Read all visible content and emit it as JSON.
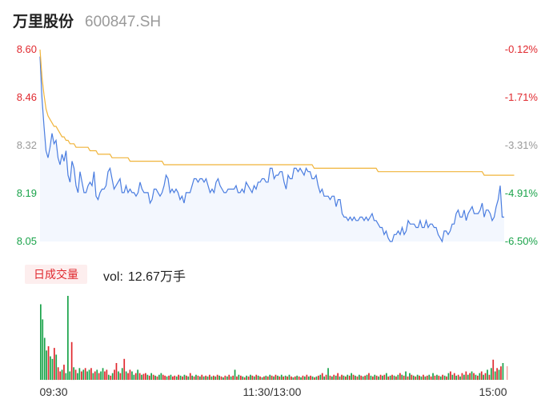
{
  "header": {
    "name": "万里股份",
    "code": "600847.SH"
  },
  "volume_legend": {
    "tab_label": "日成交量",
    "vol_label": "vol:",
    "vol_value": "12.67万手"
  },
  "chart_data": [
    {
      "type": "line",
      "title": "",
      "y_left_ticks": [
        "8.60",
        "8.46",
        "8.32",
        "8.19",
        "8.05"
      ],
      "y_right_ticks": [
        "-0.12%",
        "-1.71%",
        "-3.31%",
        "-4.91%",
        "-6.50%"
      ],
      "x_ticks": [
        "09:30",
        "11:30/13:00",
        "15:00"
      ],
      "ylim": [
        8.05,
        8.6
      ],
      "colors": {
        "price": "#4a7de0",
        "avg": "#f0b43a",
        "up": "#e0282e",
        "down": "#1aa34a",
        "neutral": "#999999"
      },
      "series": [
        {
          "role": "price",
          "values": [
            8.58,
            8.46,
            8.38,
            8.31,
            8.29,
            8.32,
            8.36,
            8.33,
            8.34,
            8.29,
            8.27,
            8.3,
            8.28,
            8.31,
            8.24,
            8.22,
            8.28,
            8.26,
            8.21,
            8.19,
            8.25,
            8.22,
            8.19,
            8.19,
            8.21,
            8.22,
            8.21,
            8.25,
            8.18,
            8.17,
            8.19,
            8.2,
            8.2,
            8.21,
            8.25,
            8.26,
            8.23,
            8.2,
            8.21,
            8.22,
            8.23,
            8.19,
            8.19,
            8.21,
            8.19,
            8.2,
            8.19,
            8.19,
            8.18,
            8.19,
            8.22,
            8.2,
            8.19,
            8.19,
            8.19,
            8.16,
            8.17,
            8.2,
            8.2,
            8.19,
            8.18,
            8.19,
            8.21,
            8.24,
            8.23,
            8.19,
            8.2,
            8.19,
            8.2,
            8.19,
            8.17,
            8.18,
            8.16,
            8.19,
            8.19,
            8.19,
            8.21,
            8.23,
            8.23,
            8.22,
            8.23,
            8.23,
            8.22,
            8.23,
            8.21,
            8.19,
            8.2,
            8.19,
            8.22,
            8.23,
            8.21,
            8.2,
            8.19,
            8.19,
            8.2,
            8.2,
            8.2,
            8.2,
            8.21,
            8.19,
            8.19,
            8.2,
            8.19,
            8.22,
            8.21,
            8.2,
            8.19,
            8.21,
            8.2,
            8.22,
            8.22,
            8.23,
            8.23,
            8.22,
            8.22,
            8.26,
            8.26,
            8.23,
            8.24,
            8.24,
            8.25,
            8.25,
            8.22,
            8.2,
            8.24,
            8.23,
            8.23,
            8.26,
            8.26,
            8.25,
            8.26,
            8.25,
            8.24,
            8.26,
            8.25,
            8.25,
            8.23,
            8.23,
            8.24,
            8.21,
            8.19,
            8.2,
            8.18,
            8.18,
            8.18,
            8.17,
            8.18,
            8.18,
            8.15,
            8.17,
            8.17,
            8.13,
            8.12,
            8.12,
            8.11,
            8.12,
            8.11,
            8.12,
            8.11,
            8.11,
            8.12,
            8.12,
            8.11,
            8.12,
            8.11,
            8.12,
            8.13,
            8.11,
            8.11,
            8.1,
            8.09,
            8.09,
            8.07,
            8.08,
            8.06,
            8.05,
            8.05,
            8.07,
            8.07,
            8.08,
            8.07,
            8.09,
            8.07,
            8.08,
            8.11,
            8.1,
            8.1,
            8.1,
            8.09,
            8.09,
            8.11,
            8.09,
            8.09,
            8.11,
            8.09,
            8.1,
            8.1,
            8.09,
            8.09,
            8.07,
            8.06,
            8.05,
            8.08,
            8.08,
            8.07,
            8.08,
            8.1,
            8.1,
            8.13,
            8.14,
            8.12,
            8.12,
            8.14,
            8.11,
            8.13,
            8.14,
            8.15,
            8.13,
            8.13,
            8.13,
            8.14,
            8.16,
            8.12,
            8.14,
            8.14,
            8.13,
            8.11,
            8.12,
            8.15,
            8.17,
            8.21,
            8.12,
            8.12
          ]
        },
        {
          "role": "avg",
          "values": [
            8.6,
            8.52,
            8.47,
            8.43,
            8.41,
            8.4,
            8.39,
            8.38,
            8.38,
            8.37,
            8.36,
            8.35,
            8.35,
            8.34,
            8.34,
            8.33,
            8.33,
            8.33,
            8.32,
            8.32,
            8.32,
            8.32,
            8.32,
            8.32,
            8.32,
            8.31,
            8.31,
            8.31,
            8.31,
            8.3,
            8.3,
            8.3,
            8.3,
            8.3,
            8.3,
            8.3,
            8.29,
            8.29,
            8.29,
            8.29,
            8.29,
            8.29,
            8.29,
            8.29,
            8.29,
            8.28,
            8.28,
            8.28,
            8.28,
            8.28,
            8.28,
            8.28,
            8.28,
            8.28,
            8.28,
            8.28,
            8.28,
            8.28,
            8.28,
            8.28,
            8.28,
            8.28,
            8.27,
            8.27,
            8.27,
            8.27,
            8.27,
            8.27,
            8.27,
            8.27,
            8.27,
            8.27,
            8.27,
            8.27,
            8.27,
            8.27,
            8.27,
            8.27,
            8.27,
            8.27,
            8.27,
            8.27,
            8.27,
            8.27,
            8.27,
            8.27,
            8.27,
            8.27,
            8.27,
            8.27,
            8.27,
            8.27,
            8.27,
            8.27,
            8.27,
            8.27,
            8.27,
            8.27,
            8.27,
            8.27,
            8.27,
            8.27,
            8.27,
            8.27,
            8.27,
            8.27,
            8.27,
            8.27,
            8.27,
            8.27,
            8.27,
            8.27,
            8.27,
            8.27,
            8.27,
            8.27,
            8.27,
            8.27,
            8.27,
            8.27,
            8.27,
            8.27,
            8.27,
            8.27,
            8.27,
            8.27,
            8.27,
            8.27,
            8.27,
            8.27,
            8.27,
            8.27,
            8.27,
            8.27,
            8.27,
            8.27,
            8.27,
            8.26,
            8.26,
            8.26,
            8.26,
            8.26,
            8.26,
            8.26,
            8.26,
            8.26,
            8.26,
            8.26,
            8.26,
            8.26,
            8.26,
            8.26,
            8.26,
            8.26,
            8.26,
            8.26,
            8.26,
            8.26,
            8.26,
            8.26,
            8.26,
            8.26,
            8.26,
            8.26,
            8.26,
            8.26,
            8.26,
            8.26,
            8.26,
            8.25,
            8.25,
            8.25,
            8.25,
            8.25,
            8.25,
            8.25,
            8.25,
            8.25,
            8.25,
            8.25,
            8.25,
            8.25,
            8.25,
            8.25,
            8.25,
            8.25,
            8.25,
            8.25,
            8.25,
            8.25,
            8.25,
            8.25,
            8.25,
            8.25,
            8.25,
            8.25,
            8.25,
            8.25,
            8.25,
            8.25,
            8.25,
            8.25,
            8.25,
            8.25,
            8.25,
            8.25,
            8.25,
            8.25,
            8.25,
            8.25,
            8.25,
            8.25,
            8.25,
            8.25,
            8.25,
            8.25,
            8.25,
            8.25,
            8.25,
            8.25,
            8.25,
            8.25,
            8.24,
            8.24,
            8.24,
            8.24,
            8.24,
            8.24,
            8.24,
            8.24,
            8.24,
            8.24,
            8.24,
            8.24,
            8.24,
            8.24,
            8.24,
            8.24
          ]
        }
      ]
    },
    {
      "type": "bar",
      "title": "",
      "x_ticks": [
        "09:30",
        "11:30/13:00",
        "15:00"
      ],
      "ylim": [
        0,
        100
      ],
      "directions": [
        "d",
        "d",
        "d",
        "d",
        "u",
        "d",
        "d",
        "u",
        "d",
        "u",
        "u",
        "d",
        "u",
        "d",
        "d",
        "d",
        "u",
        "d",
        "u",
        "d",
        "d",
        "u",
        "d",
        "u",
        "d",
        "d",
        "u",
        "d",
        "u",
        "d",
        "u",
        "d",
        "d",
        "u",
        "u",
        "d",
        "u",
        "d",
        "u",
        "u",
        "d",
        "u",
        "d",
        "u",
        "d",
        "u",
        "u",
        "d",
        "d",
        "u",
        "d",
        "u",
        "d",
        "u",
        "u",
        "d",
        "u",
        "d",
        "u",
        "d",
        "u",
        "d",
        "d",
        "u",
        "u",
        "d",
        "u",
        "d",
        "u",
        "u",
        "d",
        "u",
        "d",
        "u",
        "d",
        "u",
        "d",
        "u",
        "d",
        "u",
        "d",
        "u",
        "d",
        "u",
        "d",
        "u",
        "d",
        "u",
        "d",
        "u",
        "d",
        "u",
        "d",
        "u",
        "d",
        "u",
        "d",
        "u",
        "d",
        "u",
        "d",
        "u",
        "d",
        "u",
        "d",
        "u",
        "d",
        "u",
        "d",
        "u",
        "d",
        "u",
        "d",
        "u",
        "d",
        "u",
        "d",
        "u",
        "d",
        "u",
        "d",
        "u",
        "d",
        "u",
        "d",
        "u",
        "d",
        "u",
        "d",
        "u",
        "d",
        "u",
        "d",
        "u",
        "d",
        "u",
        "d",
        "u",
        "d",
        "u",
        "d",
        "u",
        "d",
        "u",
        "d",
        "u",
        "d",
        "u",
        "d",
        "u",
        "d",
        "u",
        "d",
        "u",
        "d",
        "u",
        "d",
        "u",
        "d",
        "u",
        "d",
        "u",
        "d",
        "u",
        "d",
        "u",
        "d",
        "u",
        "d",
        "u",
        "d",
        "u",
        "d",
        "u",
        "d",
        "u",
        "d",
        "u",
        "d",
        "u",
        "d",
        "u",
        "d",
        "u",
        "d",
        "u",
        "d",
        "u",
        "d",
        "u",
        "d",
        "u",
        "d",
        "u",
        "d",
        "u",
        "d",
        "u",
        "d",
        "u",
        "d",
        "u",
        "d",
        "u",
        "d",
        "u",
        "d",
        "u",
        "d",
        "u",
        "d",
        "u",
        "d",
        "u",
        "d",
        "u",
        "d",
        "u",
        "d",
        "u",
        "d",
        "u",
        "d",
        "u",
        "d",
        "u",
        "d",
        "u",
        "d",
        "u",
        "d",
        "u",
        "d",
        "u",
        "d",
        "u",
        "d",
        "u",
        "d",
        "u",
        "d",
        "u",
        "d",
        "u",
        "d",
        "u",
        "d",
        "u",
        "d",
        "d",
        "u",
        "u"
      ],
      "values": [
        90,
        72,
        50,
        35,
        40,
        28,
        25,
        38,
        30,
        15,
        10,
        12,
        18,
        8,
        100,
        10,
        45,
        15,
        12,
        8,
        14,
        10,
        12,
        14,
        10,
        12,
        14,
        8,
        10,
        12,
        8,
        10,
        14,
        10,
        12,
        6,
        5,
        8,
        12,
        20,
        10,
        8,
        14,
        25,
        10,
        8,
        12,
        10,
        6,
        8,
        12,
        8,
        6,
        7,
        8,
        6,
        5,
        8,
        6,
        5,
        4,
        6,
        8,
        6,
        5,
        4,
        5,
        6,
        4,
        5,
        4,
        6,
        5,
        4,
        6,
        5,
        4,
        8,
        5,
        4,
        6,
        5,
        4,
        6,
        4,
        5,
        4,
        6,
        4,
        5,
        4,
        6,
        5,
        4,
        3,
        5,
        4,
        6,
        4,
        5,
        12,
        4,
        6,
        5,
        4,
        3,
        5,
        4,
        6,
        5,
        4,
        6,
        5,
        4,
        3,
        4,
        5,
        4,
        6,
        5,
        4,
        6,
        5,
        4,
        6,
        4,
        5,
        4,
        6,
        4,
        3,
        4,
        5,
        4,
        3,
        5,
        4,
        6,
        4,
        5,
        4,
        3,
        4,
        5,
        6,
        8,
        4,
        6,
        14,
        5,
        4,
        6,
        5,
        8,
        4,
        6,
        5,
        4,
        6,
        5,
        8,
        6,
        5,
        4,
        6,
        5,
        4,
        5,
        6,
        8,
        5,
        4,
        6,
        5,
        4,
        6,
        5,
        6,
        8,
        4,
        5,
        6,
        5,
        4,
        6,
        8,
        6,
        5,
        10,
        4,
        8,
        6,
        5,
        4,
        6,
        5,
        4,
        6,
        4,
        5,
        6,
        4,
        8,
        5,
        6,
        5,
        4,
        6,
        5,
        4,
        8,
        10,
        6,
        8,
        5,
        6,
        4,
        8,
        6,
        10,
        6,
        8,
        10,
        8,
        6,
        5,
        8,
        10,
        6,
        8,
        12,
        6,
        14,
        24,
        10,
        14,
        12,
        16,
        20
      ]
    }
  ]
}
